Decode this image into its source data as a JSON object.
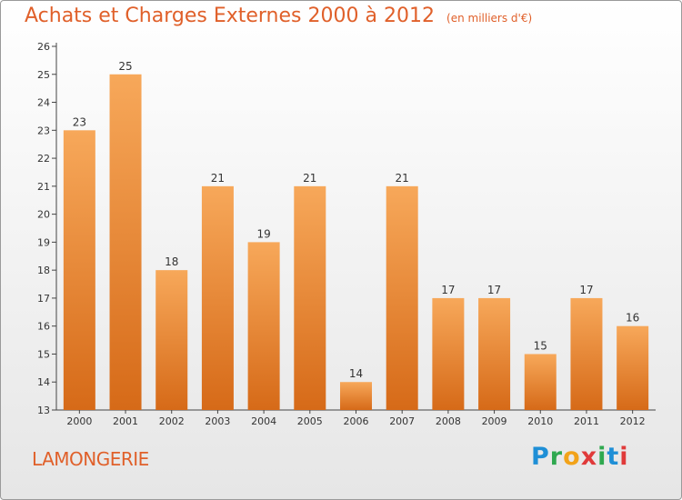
{
  "chart_data": {
    "type": "bar",
    "title": "Achats et Charges Externes 2000 à 2012",
    "unit_label": "(en milliers d'€)",
    "categories": [
      "2000",
      "2001",
      "2002",
      "2003",
      "2004",
      "2005",
      "2006",
      "2007",
      "2008",
      "2009",
      "2010",
      "2011",
      "2012"
    ],
    "values": [
      23,
      25,
      18,
      21,
      19,
      21,
      14,
      21,
      17,
      17,
      15,
      17,
      16
    ],
    "ylim": [
      13,
      26
    ],
    "yticks": [
      13,
      14,
      15,
      16,
      17,
      18,
      19,
      20,
      21,
      22,
      23,
      24,
      25,
      26
    ],
    "xlabel": "",
    "ylabel": "",
    "grid": false,
    "bar_color": "#f4a04e",
    "bar_color_dark": "#d96d1a"
  },
  "footer": {
    "commune": "LAMONGERIE",
    "logo": {
      "p": "P",
      "r": "r",
      "o": "o",
      "x": "x",
      "i1": "i",
      "t": "t",
      "i2": "i"
    }
  },
  "colors": {
    "accent": "#e0602a"
  }
}
